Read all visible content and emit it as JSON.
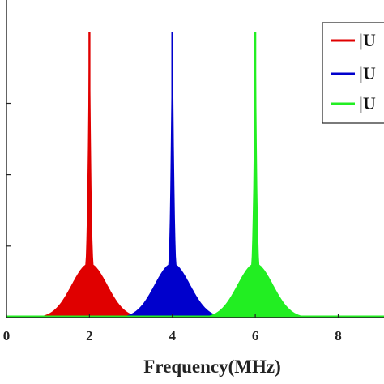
{
  "chart_data": {
    "type": "line",
    "title": "",
    "xlabel": "Frequency(MHz)",
    "ylabel": "",
    "xlim": [
      0,
      9.3
    ],
    "ylim": [
      0,
      1.1
    ],
    "x_ticks": [
      0,
      2,
      4,
      6,
      8
    ],
    "y_ticks": [
      0.25,
      0.5,
      0.75
    ],
    "grid": false,
    "legend_position": "top-right",
    "series": [
      {
        "name": "|U",
        "color": "#e00000",
        "peak_x": 2,
        "peak_y": 1.0,
        "width_mhz": 0.09,
        "spread_mhz": 0.9
      },
      {
        "name": "|U",
        "color": "#0000cc",
        "peak_x": 4,
        "peak_y": 1.0,
        "width_mhz": 0.09,
        "spread_mhz": 0.9
      },
      {
        "name": "|U",
        "color": "#22ee22",
        "peak_x": 6,
        "peak_y": 1.0,
        "width_mhz": 0.09,
        "spread_mhz": 0.9
      }
    ]
  }
}
